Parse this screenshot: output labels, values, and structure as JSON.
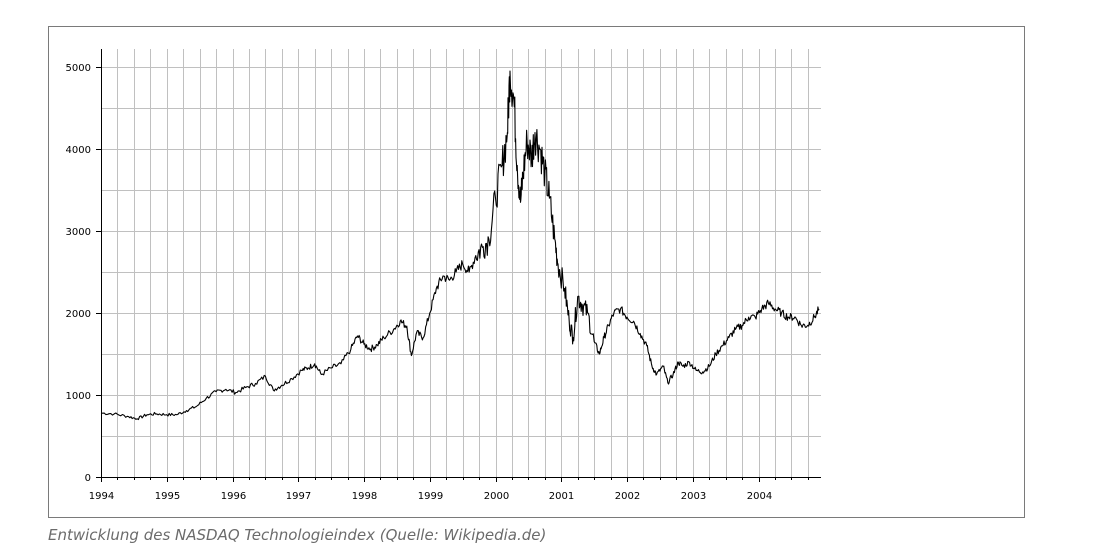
{
  "caption": "Entwicklung des NASDAQ Technologieindex (Quelle: Wikipedia.de)",
  "chart_data": {
    "type": "line",
    "title": "",
    "xlabel": "",
    "ylabel": "",
    "xlim": [
      1994.0,
      2004.95
    ],
    "ylim": [
      0,
      5200
    ],
    "x_ticks": [
      1994,
      1995,
      1996,
      1997,
      1998,
      1999,
      2000,
      2001,
      2002,
      2003,
      2004
    ],
    "x_tick_labels": [
      "1994",
      "1995",
      "1996",
      "1997",
      "1998",
      "1999",
      "2000",
      "2001",
      "2002",
      "2003",
      "2004"
    ],
    "y_ticks": [
      0,
      1000,
      2000,
      3000,
      4000,
      5000
    ],
    "y_tick_labels": [
      "0",
      "1000",
      "2000",
      "3000",
      "4000",
      "5000"
    ],
    "grid": true,
    "line_color": "#000000",
    "grid_color": "#c0c0c0",
    "series": [
      {
        "x": [
          1994.0,
          1994.2,
          1994.4,
          1994.55,
          1994.7,
          1994.85,
          1995.0,
          1995.15,
          1995.3,
          1995.45,
          1995.6,
          1995.75,
          1995.9,
          1996.05,
          1996.2,
          1996.35,
          1996.5,
          1996.62,
          1996.75,
          1996.9,
          1997.05,
          1997.15,
          1997.25,
          1997.35,
          1997.5,
          1997.65,
          1997.8,
          1997.9,
          1998.0,
          1998.1,
          1998.2,
          1998.3,
          1998.45,
          1998.55,
          1998.65,
          1998.72,
          1998.8,
          1998.9,
          1999.0,
          1999.1,
          1999.2,
          1999.3,
          1999.4,
          1999.5,
          1999.6,
          1999.7,
          1999.8,
          1999.9,
          2000.0,
          2000.1,
          2000.18,
          2000.22,
          2000.28,
          2000.33,
          2000.38,
          2000.42,
          2000.48,
          2000.55,
          2000.6,
          2000.68,
          2000.75,
          2000.82,
          2000.9,
          2000.95,
          2001.05,
          2001.12,
          2001.18,
          2001.25,
          2001.32,
          2001.4,
          2001.5,
          2001.58,
          2001.65,
          2001.72,
          2001.8,
          2001.9,
          2002.0,
          2002.1,
          2002.2,
          2002.3,
          2002.38,
          2002.45,
          2002.55,
          2002.62,
          2002.7,
          2002.78,
          2002.85,
          2002.95,
          2003.05,
          2003.15,
          2003.25,
          2003.35,
          2003.45,
          2003.55,
          2003.65,
          2003.75,
          2003.85,
          2003.95,
          2004.05,
          2004.15,
          2004.25,
          2004.35,
          2004.45,
          2004.55,
          2004.65,
          2004.75,
          2004.85,
          2004.92
        ],
        "y": [
          780,
          770,
          740,
          710,
          760,
          770,
          760,
          760,
          810,
          860,
          960,
          1040,
          1070,
          1030,
          1090,
          1140,
          1230,
          1060,
          1120,
          1200,
          1300,
          1330,
          1380,
          1250,
          1330,
          1380,
          1560,
          1720,
          1620,
          1560,
          1610,
          1700,
          1800,
          1900,
          1840,
          1480,
          1760,
          1700,
          2000,
          2300,
          2450,
          2400,
          2500,
          2600,
          2500,
          2700,
          2800,
          2900,
          3400,
          3800,
          4200,
          4950,
          4600,
          3800,
          3350,
          3700,
          4100,
          3900,
          4200,
          4000,
          3700,
          3400,
          2900,
          2600,
          2300,
          1900,
          1700,
          2200,
          2100,
          2000,
          1650,
          1500,
          1700,
          1850,
          2000,
          2050,
          1950,
          1900,
          1750,
          1600,
          1350,
          1250,
          1350,
          1150,
          1250,
          1400,
          1350,
          1400,
          1300,
          1280,
          1350,
          1500,
          1600,
          1700,
          1800,
          1850,
          1950,
          1950,
          2050,
          2120,
          2050,
          2000,
          1950,
          1950,
          1850,
          1850,
          1950,
          2050
        ]
      }
    ]
  }
}
